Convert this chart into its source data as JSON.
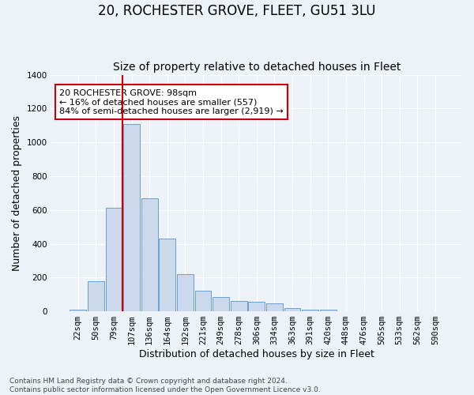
{
  "title": "20, ROCHESTER GROVE, FLEET, GU51 3LU",
  "subtitle": "Size of property relative to detached houses in Fleet",
  "xlabel": "Distribution of detached houses by size in Fleet",
  "ylabel": "Number of detached properties",
  "categories": [
    "22sqm",
    "50sqm",
    "79sqm",
    "107sqm",
    "136sqm",
    "164sqm",
    "192sqm",
    "221sqm",
    "249sqm",
    "278sqm",
    "306sqm",
    "334sqm",
    "363sqm",
    "391sqm",
    "420sqm",
    "448sqm",
    "476sqm",
    "505sqm",
    "533sqm",
    "562sqm",
    "590sqm"
  ],
  "values": [
    12,
    180,
    615,
    1110,
    670,
    430,
    220,
    120,
    85,
    60,
    55,
    45,
    18,
    12,
    8,
    0,
    0,
    0,
    0,
    0,
    0
  ],
  "bar_color": "#ccd9ec",
  "bar_edge_color": "#6a9fd0",
  "vline_x": 2.5,
  "vline_color": "#cc0000",
  "annotation_text": "20 ROCHESTER GROVE: 98sqm\n← 16% of detached houses are smaller (557)\n84% of semi-detached houses are larger (2,919) →",
  "annotation_box_color": "#ffffff",
  "annotation_box_edge": "#cc0000",
  "ylim": [
    0,
    1400
  ],
  "yticks": [
    0,
    200,
    400,
    600,
    800,
    1000,
    1200,
    1400
  ],
  "footer": "Contains HM Land Registry data © Crown copyright and database right 2024.\nContains public sector information licensed under the Open Government Licence v3.0.",
  "bg_color": "#edf1f8",
  "plot_bg_color": "#edf1f8",
  "grid_color": "#ffffff",
  "title_fontsize": 12,
  "subtitle_fontsize": 10,
  "axis_label_fontsize": 9,
  "tick_fontsize": 7.5
}
